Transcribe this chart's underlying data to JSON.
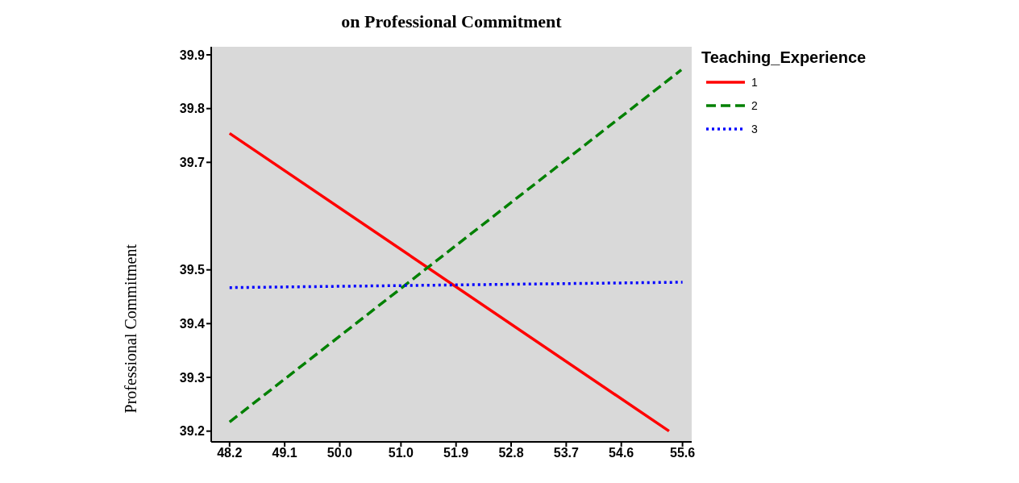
{
  "chart_data": {
    "type": "line",
    "title": "on Professional Commitment",
    "ylabel": "Professional Commitment",
    "legend_title": "Teaching_Experience",
    "legend": "top right",
    "grid": false,
    "marker": "none",
    "xlim": [
      47.9,
      55.75
    ],
    "ylim": [
      39.18,
      39.915
    ],
    "xticks": [
      48.2,
      49.1,
      {
        "value": 50,
        "label": "50.0"
      },
      {
        "value": 51,
        "label": "51.0"
      },
      51.9,
      52.8,
      53.7,
      54.6,
      55.6
    ],
    "yticks": [
      39.2,
      39.3,
      39.4,
      39.5,
      39.7,
      39.8,
      39.9
    ],
    "series": [
      {
        "name": "1",
        "color": "#ff0000",
        "line_style": "solid",
        "x": [
          48.2,
          55.38
        ],
        "values": [
          39.754,
          39.2
        ]
      },
      {
        "name": "2",
        "color": "#008000",
        "line_style": "dashed",
        "x": [
          48.2,
          55.58
        ],
        "values": [
          39.217,
          39.872
        ]
      },
      {
        "name": "3",
        "color": "#0000ff",
        "line_style": "dotted",
        "x": [
          48.2,
          55.6
        ],
        "values": [
          39.467,
          39.477
        ]
      }
    ]
  }
}
